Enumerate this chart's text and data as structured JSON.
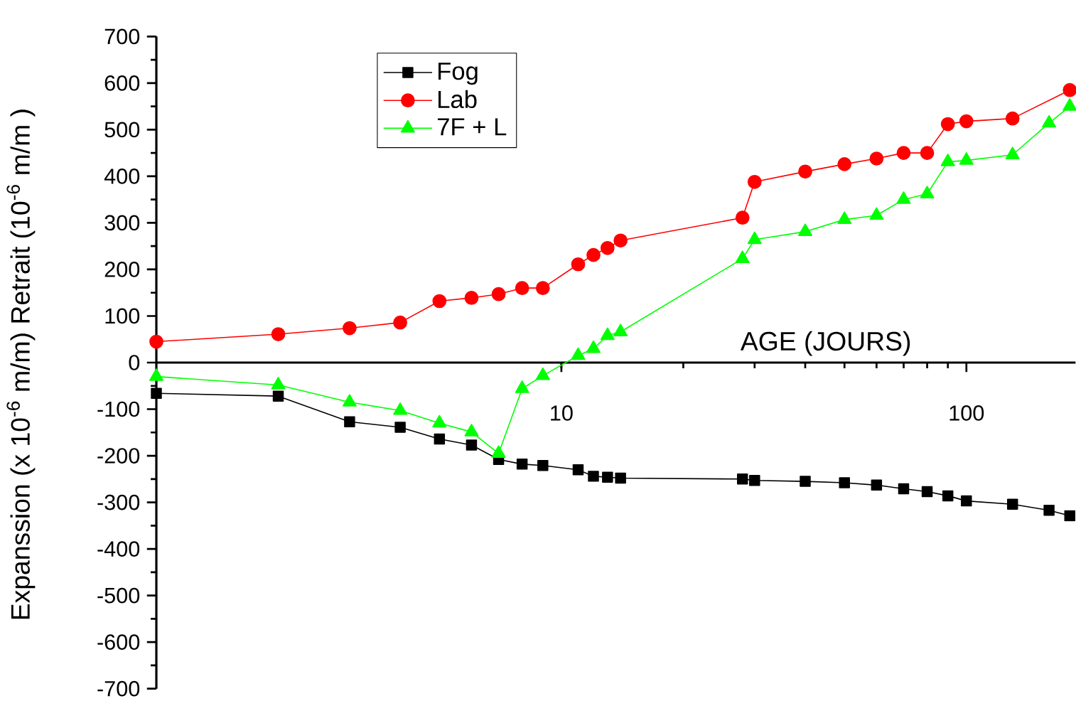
{
  "chart_data": {
    "type": "line",
    "xlabel": "AGE (JOURS)",
    "ylabel": "Expanssion (x 10$^{-6}$  m/m)      Retrait (10$^{-6}$  m/m )",
    "log": "x",
    "xlim": [
      1,
      186
    ],
    "xticks": [
      10,
      100
    ],
    "ylim": [
      -700,
      700
    ],
    "yticks": [
      -700,
      -600,
      -500,
      -400,
      -300,
      -200,
      -100,
      0,
      100,
      200,
      300,
      400,
      500,
      600,
      700
    ],
    "grid": false,
    "legend": "top left",
    "line_style": "solid",
    "series": [
      {
        "name": "Fog",
        "color": "#000000",
        "marker": "square",
        "x": [
          1,
          2,
          3,
          4,
          5,
          6,
          7,
          8,
          9,
          11,
          12,
          13,
          14,
          28,
          30,
          40,
          50,
          60,
          70,
          80,
          90,
          100,
          130,
          160,
          180
        ],
        "values": [
          -66,
          -72,
          -127,
          -139,
          -164,
          -177,
          -208,
          -218,
          -221,
          -230,
          -244,
          -246,
          -248,
          -250,
          -253,
          -255,
          -258,
          -263,
          -271,
          -277,
          -286,
          -297,
          -304,
          -317,
          -329
        ]
      },
      {
        "name": "Lab",
        "color": "#ff0000",
        "marker": "circle",
        "x": [
          1,
          2,
          3,
          4,
          5,
          6,
          7,
          8,
          9,
          11,
          12,
          13,
          14,
          28,
          30,
          40,
          50,
          60,
          70,
          80,
          90,
          100,
          130,
          180
        ],
        "values": [
          45,
          61,
          74,
          86,
          132,
          139,
          147,
          160,
          160,
          211,
          231,
          246,
          262,
          311,
          388,
          410,
          426,
          438,
          450,
          450,
          512,
          518,
          524,
          585
        ]
      },
      {
        "name": "7F + L",
        "color": "#00ff00",
        "marker": "triangle",
        "x": [
          1,
          2,
          3,
          4,
          5,
          6,
          7,
          8,
          9,
          11,
          12,
          13,
          14,
          28,
          30,
          40,
          50,
          60,
          70,
          80,
          90,
          100,
          130,
          160,
          180
        ],
        "values": [
          -30,
          -48,
          -85,
          -103,
          -130,
          -149,
          -195,
          -56,
          -28,
          15,
          30,
          58,
          66,
          223,
          264,
          281,
          307,
          316,
          350,
          362,
          431,
          434,
          446,
          514,
          550
        ]
      }
    ]
  }
}
